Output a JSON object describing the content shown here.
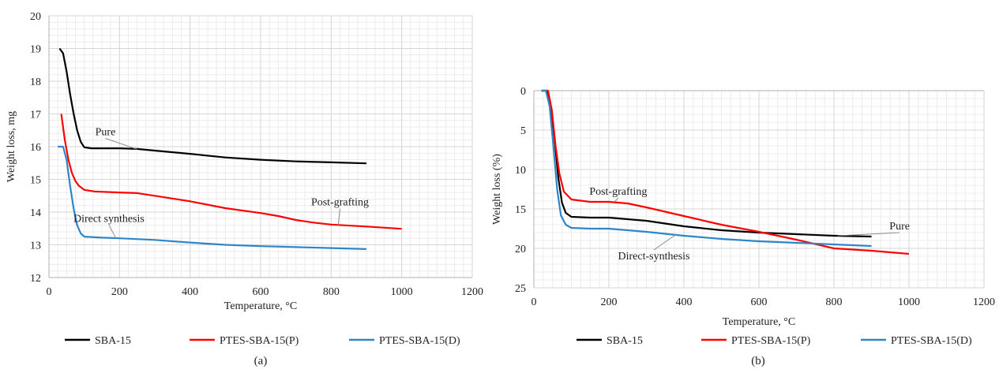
{
  "chart_data": [
    {
      "type": "line",
      "panel_label": "(a)",
      "xlabel": "Temperature, °C",
      "ylabel": "Weight loss, mg",
      "xlim": [
        0,
        1200
      ],
      "ylim": [
        12,
        20
      ],
      "y_inverted": false,
      "x_ticks": [
        0,
        200,
        400,
        600,
        800,
        1000,
        1200
      ],
      "y_ticks": [
        12,
        13,
        14,
        15,
        16,
        17,
        18,
        19,
        20
      ],
      "grid": true,
      "legend_position": "bottom",
      "series": [
        {
          "name": "SBA-15",
          "color": "#000000",
          "points": [
            [
              30,
              19.0
            ],
            [
              40,
              18.85
            ],
            [
              50,
              18.3
            ],
            [
              60,
              17.6
            ],
            [
              70,
              17.0
            ],
            [
              80,
              16.5
            ],
            [
              90,
              16.15
            ],
            [
              100,
              15.98
            ],
            [
              120,
              15.95
            ],
            [
              200,
              15.95
            ],
            [
              250,
              15.93
            ],
            [
              300,
              15.88
            ],
            [
              400,
              15.78
            ],
            [
              500,
              15.67
            ],
            [
              600,
              15.6
            ],
            [
              700,
              15.55
            ],
            [
              800,
              15.52
            ],
            [
              900,
              15.49
            ]
          ]
        },
        {
          "name": "PTES-SBA-15(P)",
          "color": "#ff0000",
          "points": [
            [
              35,
              17.0
            ],
            [
              45,
              16.2
            ],
            [
              55,
              15.6
            ],
            [
              65,
              15.2
            ],
            [
              75,
              14.95
            ],
            [
              85,
              14.8
            ],
            [
              100,
              14.68
            ],
            [
              130,
              14.63
            ],
            [
              200,
              14.6
            ],
            [
              250,
              14.58
            ],
            [
              300,
              14.5
            ],
            [
              400,
              14.33
            ],
            [
              500,
              14.12
            ],
            [
              600,
              13.97
            ],
            [
              650,
              13.88
            ],
            [
              700,
              13.76
            ],
            [
              750,
              13.68
            ],
            [
              800,
              13.62
            ],
            [
              900,
              13.56
            ],
            [
              1000,
              13.49
            ]
          ]
        },
        {
          "name": "PTES-SBA-15(D)",
          "color": "#2e86c8",
          "points": [
            [
              25,
              16.0
            ],
            [
              40,
              16.0
            ],
            [
              50,
              15.6
            ],
            [
              60,
              14.8
            ],
            [
              70,
              14.1
            ],
            [
              80,
              13.6
            ],
            [
              90,
              13.35
            ],
            [
              100,
              13.25
            ],
            [
              150,
              13.22
            ],
            [
              200,
              13.2
            ],
            [
              300,
              13.15
            ],
            [
              400,
              13.07
            ],
            [
              500,
              13.0
            ],
            [
              600,
              12.96
            ],
            [
              700,
              12.93
            ],
            [
              800,
              12.9
            ],
            [
              900,
              12.87
            ]
          ]
        }
      ],
      "annotations": [
        {
          "text": "Pure",
          "target": [
            250,
            15.92
          ],
          "text_at": [
            160,
            16.35
          ]
        },
        {
          "text": "Post-grafting",
          "target": [
            820,
            13.6
          ],
          "text_at": [
            825,
            14.2
          ]
        },
        {
          "text": "Direct synthesis",
          "target": [
            190,
            13.2
          ],
          "text_at": [
            170,
            13.7
          ]
        }
      ]
    },
    {
      "type": "line",
      "panel_label": "(b)",
      "xlabel": "Temperature, °C",
      "ylabel": "Weight loss (%)",
      "xlim": [
        0,
        1200
      ],
      "ylim": [
        0,
        25
      ],
      "y_inverted": true,
      "x_ticks": [
        0,
        200,
        400,
        600,
        800,
        1000,
        1200
      ],
      "y_ticks": [
        0,
        5,
        10,
        15,
        20,
        25
      ],
      "grid": true,
      "legend_position": "bottom",
      "series": [
        {
          "name": "SBA-15",
          "color": "#000000",
          "points": [
            [
              20,
              0
            ],
            [
              35,
              0
            ],
            [
              45,
              2
            ],
            [
              55,
              6
            ],
            [
              65,
              11
            ],
            [
              75,
              14.2
            ],
            [
              85,
              15.5
            ],
            [
              100,
              16.0
            ],
            [
              150,
              16.1
            ],
            [
              200,
              16.1
            ],
            [
              300,
              16.5
            ],
            [
              400,
              17.2
            ],
            [
              500,
              17.7
            ],
            [
              600,
              18.0
            ],
            [
              700,
              18.2
            ],
            [
              800,
              18.4
            ],
            [
              900,
              18.5
            ]
          ]
        },
        {
          "name": "PTES-SBA-15(P)",
          "color": "#ff0000",
          "points": [
            [
              20,
              0
            ],
            [
              38,
              0
            ],
            [
              48,
              2.5
            ],
            [
              58,
              7
            ],
            [
              68,
              10.5
            ],
            [
              80,
              12.8
            ],
            [
              100,
              13.8
            ],
            [
              150,
              14.1
            ],
            [
              200,
              14.1
            ],
            [
              250,
              14.3
            ],
            [
              300,
              14.8
            ],
            [
              400,
              15.9
            ],
            [
              500,
              17.0
            ],
            [
              600,
              17.9
            ],
            [
              700,
              18.9
            ],
            [
              800,
              20.0
            ],
            [
              900,
              20.3
            ],
            [
              1000,
              20.7
            ]
          ]
        },
        {
          "name": "PTES-SBA-15(D)",
          "color": "#2e86c8",
          "points": [
            [
              20,
              0
            ],
            [
              32,
              0
            ],
            [
              42,
              2
            ],
            [
              52,
              7
            ],
            [
              62,
              12.5
            ],
            [
              72,
              15.8
            ],
            [
              85,
              17.0
            ],
            [
              100,
              17.4
            ],
            [
              150,
              17.5
            ],
            [
              200,
              17.5
            ],
            [
              300,
              17.9
            ],
            [
              400,
              18.4
            ],
            [
              500,
              18.8
            ],
            [
              600,
              19.1
            ],
            [
              700,
              19.3
            ],
            [
              800,
              19.5
            ],
            [
              900,
              19.7
            ]
          ]
        }
      ],
      "annotations": [
        {
          "text": "Post-grafting",
          "target": [
            215,
            14.1
          ],
          "text_at": [
            225,
            13.2
          ]
        },
        {
          "text": "Pure",
          "target": [
            810,
            18.4
          ],
          "text_at": [
            975,
            17.6
          ]
        },
        {
          "text": "Direct-synthesis",
          "target": [
            380,
            18.2
          ],
          "text_at": [
            320,
            21.4
          ]
        }
      ]
    }
  ]
}
